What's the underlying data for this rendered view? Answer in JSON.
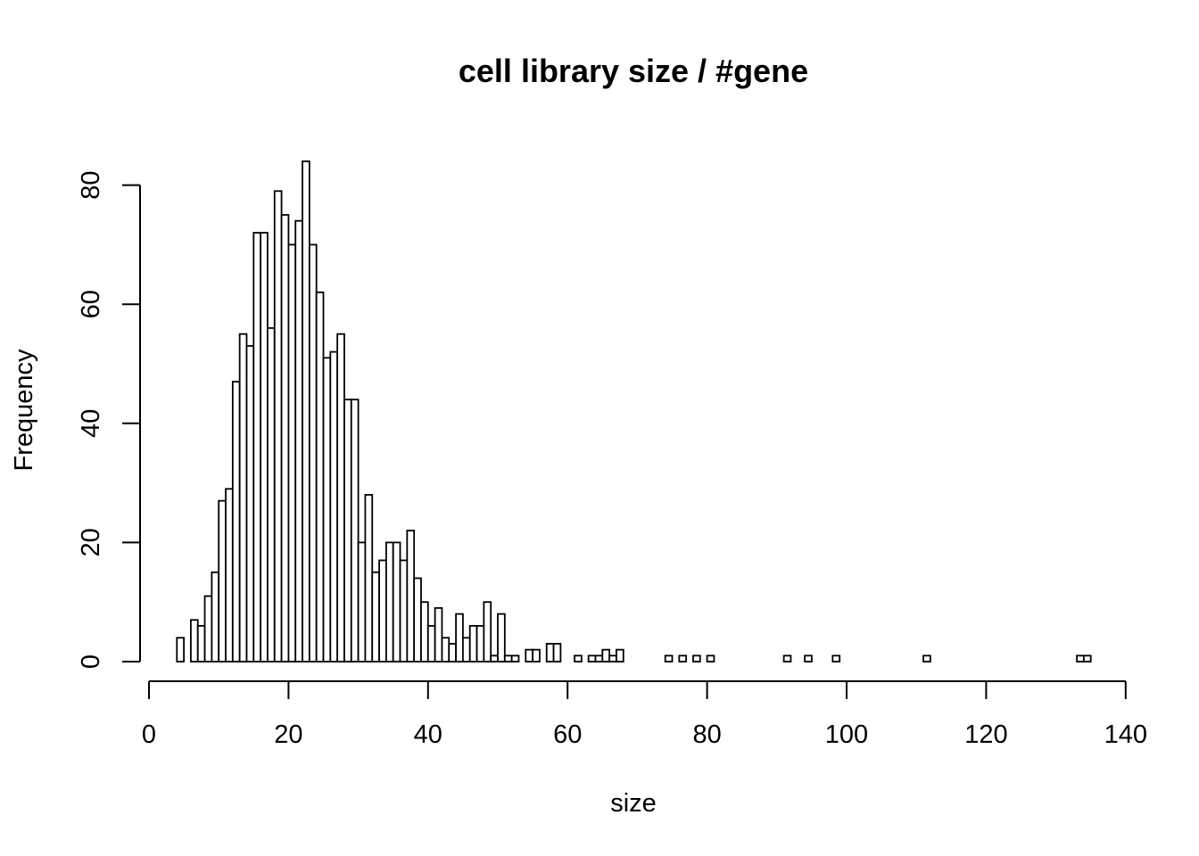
{
  "chart_data": {
    "type": "bar",
    "title": "cell library size / #gene",
    "xlabel": "size",
    "ylabel": "Frequency",
    "bin_width": 1,
    "xlim": [
      0,
      140
    ],
    "ylim": [
      0,
      80
    ],
    "x_ticks": [
      "0",
      "20",
      "40",
      "60",
      "80",
      "100",
      "120",
      "140"
    ],
    "y_ticks": [
      "0",
      "20",
      "40",
      "60",
      "80"
    ],
    "grid": false,
    "legend": "none",
    "bins": [
      {
        "x": 4,
        "y": 4
      },
      {
        "x": 5,
        "y": 0
      },
      {
        "x": 6,
        "y": 7
      },
      {
        "x": 7,
        "y": 6
      },
      {
        "x": 8,
        "y": 11
      },
      {
        "x": 9,
        "y": 15
      },
      {
        "x": 10,
        "y": 27
      },
      {
        "x": 11,
        "y": 29
      },
      {
        "x": 12,
        "y": 47
      },
      {
        "x": 13,
        "y": 55
      },
      {
        "x": 14,
        "y": 53
      },
      {
        "x": 15,
        "y": 72
      },
      {
        "x": 16,
        "y": 72
      },
      {
        "x": 17,
        "y": 56
      },
      {
        "x": 18,
        "y": 79
      },
      {
        "x": 19,
        "y": 75
      },
      {
        "x": 20,
        "y": 70
      },
      {
        "x": 21,
        "y": 74
      },
      {
        "x": 22,
        "y": 84
      },
      {
        "x": 23,
        "y": 70
      },
      {
        "x": 24,
        "y": 62
      },
      {
        "x": 25,
        "y": 51
      },
      {
        "x": 26,
        "y": 52
      },
      {
        "x": 27,
        "y": 55
      },
      {
        "x": 28,
        "y": 44
      },
      {
        "x": 29,
        "y": 44
      },
      {
        "x": 30,
        "y": 20
      },
      {
        "x": 31,
        "y": 28
      },
      {
        "x": 32,
        "y": 15
      },
      {
        "x": 33,
        "y": 17
      },
      {
        "x": 34,
        "y": 20
      },
      {
        "x": 35,
        "y": 20
      },
      {
        "x": 36,
        "y": 17
      },
      {
        "x": 37,
        "y": 22
      },
      {
        "x": 38,
        "y": 14
      },
      {
        "x": 39,
        "y": 10
      },
      {
        "x": 40,
        "y": 6
      },
      {
        "x": 41,
        "y": 9
      },
      {
        "x": 42,
        "y": 4
      },
      {
        "x": 43,
        "y": 3
      },
      {
        "x": 44,
        "y": 8
      },
      {
        "x": 45,
        "y": 4
      },
      {
        "x": 46,
        "y": 6
      },
      {
        "x": 47,
        "y": 6
      },
      {
        "x": 48,
        "y": 10
      },
      {
        "x": 49,
        "y": 1
      },
      {
        "x": 50,
        "y": 8
      },
      {
        "x": 51,
        "y": 1
      },
      {
        "x": 52,
        "y": 1
      },
      {
        "x": 53,
        "y": 0
      },
      {
        "x": 54,
        "y": 2
      },
      {
        "x": 55,
        "y": 2
      },
      {
        "x": 56,
        "y": 0
      },
      {
        "x": 57,
        "y": 3
      },
      {
        "x": 58,
        "y": 3
      },
      {
        "x": 59,
        "y": 0
      },
      {
        "x": 60,
        "y": 0
      },
      {
        "x": 61,
        "y": 1
      },
      {
        "x": 62,
        "y": 0
      },
      {
        "x": 63,
        "y": 1
      },
      {
        "x": 64,
        "y": 1
      },
      {
        "x": 65,
        "y": 2
      },
      {
        "x": 66,
        "y": 1
      },
      {
        "x": 67,
        "y": 2
      },
      {
        "x": 68,
        "y": 0
      },
      {
        "x": 74,
        "y": 1
      },
      {
        "x": 76,
        "y": 1
      },
      {
        "x": 78,
        "y": 1
      },
      {
        "x": 80,
        "y": 1
      },
      {
        "x": 91,
        "y": 1
      },
      {
        "x": 94,
        "y": 1
      },
      {
        "x": 98,
        "y": 1
      },
      {
        "x": 111,
        "y": 1
      },
      {
        "x": 133,
        "y": 1
      },
      {
        "x": 134,
        "y": 1
      }
    ]
  }
}
